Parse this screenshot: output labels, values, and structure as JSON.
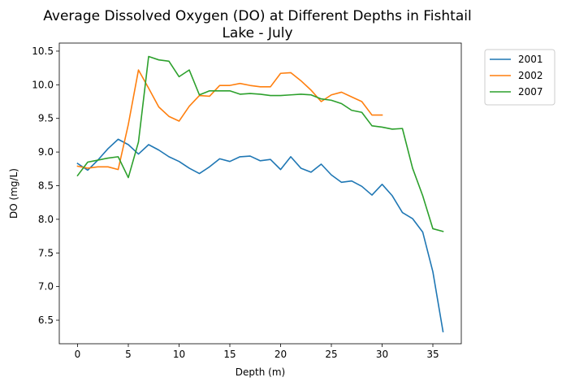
{
  "chart_data": {
    "type": "line",
    "title_lines": [
      "Average Dissolved Oxygen (DO) at Different Depths in Fishtail",
      "Lake - July"
    ],
    "xlabel": "Depth (m)",
    "ylabel": "DO (mg/L)",
    "xlim": [
      -1.8,
      37.8
    ],
    "ylim": [
      6.15,
      10.62
    ],
    "xticks": [
      0,
      5,
      10,
      15,
      20,
      25,
      30,
      35
    ],
    "yticks": [
      6.5,
      7.0,
      7.5,
      8.0,
      8.5,
      9.0,
      9.5,
      10.0,
      10.5
    ],
    "xtick_labels": [
      "0",
      "5",
      "10",
      "15",
      "20",
      "25",
      "30",
      "35"
    ],
    "ytick_labels": [
      "6.5",
      "7.0",
      "7.5",
      "8.0",
      "8.5",
      "9.0",
      "9.5",
      "10.0",
      "10.5"
    ],
    "grid": false,
    "legend_position": "outside-top-right",
    "series": [
      {
        "name": "2001",
        "color": "#1f77b4",
        "x": [
          0,
          1,
          2,
          3,
          4,
          5,
          6,
          7,
          8,
          9,
          10,
          11,
          12,
          13,
          14,
          15,
          16,
          17,
          18,
          19,
          20,
          21,
          22,
          23,
          24,
          25,
          26,
          27,
          28,
          29,
          30,
          31,
          32,
          33,
          34,
          35,
          36
        ],
        "y": [
          8.83,
          8.73,
          8.88,
          9.05,
          9.19,
          9.11,
          8.97,
          9.11,
          9.03,
          8.93,
          8.86,
          8.76,
          8.68,
          8.78,
          8.9,
          8.86,
          8.93,
          8.94,
          8.87,
          8.89,
          8.74,
          8.93,
          8.76,
          8.7,
          8.82,
          8.66,
          8.55,
          8.57,
          8.49,
          8.36,
          8.52,
          8.35,
          8.1,
          8.01,
          7.81,
          7.22,
          6.33
        ]
      },
      {
        "name": "2002",
        "color": "#ff7f0e",
        "x": [
          0,
          1,
          2,
          3,
          4,
          5,
          6,
          7,
          8,
          9,
          10,
          11,
          12,
          13,
          14,
          15,
          16,
          17,
          18,
          19,
          20,
          21,
          22,
          23,
          24,
          25,
          26,
          27,
          28,
          29,
          30
        ],
        "y": [
          8.79,
          8.76,
          8.78,
          8.78,
          8.74,
          9.41,
          10.22,
          9.95,
          9.67,
          9.53,
          9.46,
          9.68,
          9.84,
          9.83,
          9.99,
          9.99,
          10.02,
          9.99,
          9.97,
          9.97,
          10.17,
          10.18,
          10.06,
          9.92,
          9.75,
          9.85,
          9.89,
          9.82,
          9.75,
          9.55,
          9.55
        ]
      },
      {
        "name": "2007",
        "color": "#2ca02c",
        "x": [
          0,
          1,
          2,
          3,
          4,
          5,
          6,
          7,
          8,
          9,
          10,
          11,
          12,
          13,
          14,
          15,
          16,
          17,
          18,
          19,
          20,
          21,
          22,
          23,
          24,
          25,
          26,
          27,
          28,
          29,
          30,
          31,
          32,
          33,
          34,
          35,
          36
        ],
        "y": [
          8.65,
          8.85,
          8.88,
          8.91,
          8.93,
          8.62,
          9.15,
          10.42,
          10.37,
          10.35,
          10.12,
          10.22,
          9.85,
          9.91,
          9.91,
          9.91,
          9.86,
          9.87,
          9.86,
          9.84,
          9.84,
          9.85,
          9.86,
          9.85,
          9.79,
          9.77,
          9.72,
          9.62,
          9.59,
          9.39,
          9.37,
          9.34,
          9.35,
          8.76,
          8.35,
          7.86,
          7.82
        ]
      }
    ]
  }
}
